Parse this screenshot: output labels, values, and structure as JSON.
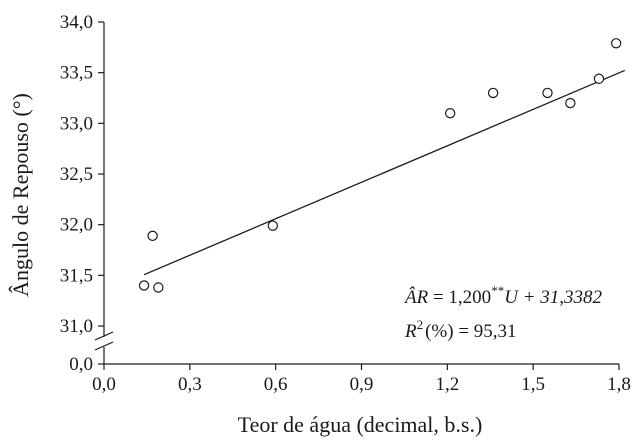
{
  "chart_data": {
    "type": "scatter",
    "title": "",
    "xlabel": "Teor de água (decimal, b.s.)",
    "ylabel": "Ângulo de Repouso (°)",
    "xlim": [
      0.0,
      1.8
    ],
    "ylim": [
      31.0,
      34.0
    ],
    "axis_break": {
      "below": 31.0,
      "lower_tick": 0.0
    },
    "x_ticks": [
      "0,0",
      "0,3",
      "0,6",
      "0,9",
      "1,2",
      "1,5",
      "1,8"
    ],
    "y_ticks": [
      "0,0",
      "31,0",
      "31,5",
      "32,0",
      "32,5",
      "33,0",
      "33,5",
      "34,0"
    ],
    "grid": false,
    "legend": "none",
    "series": [
      {
        "marker": "open-circle",
        "x": [
          0.14,
          0.17,
          0.19,
          0.59,
          1.21,
          1.36,
          1.55,
          1.63,
          1.73,
          1.79
        ],
        "y": [
          31.4,
          31.89,
          31.38,
          31.99,
          33.1,
          33.3,
          33.3,
          33.2,
          33.44,
          33.79
        ]
      }
    ],
    "fit_line": {
      "slope": 1.2,
      "intercept": 31.3382,
      "x_range": [
        0.14,
        1.82
      ]
    },
    "annotations": {
      "equation": {
        "lhs": "ÂR",
        "eq": " = 1,200",
        "superscript": "**",
        "rhs": "U + 31,3382"
      },
      "r2": {
        "lhs": "R",
        "superscript": "2",
        "pct": "(%)",
        "rhs": " = 95,31"
      }
    },
    "colors": {
      "ink": "#1a1a1a",
      "background": "#ffffff"
    }
  }
}
